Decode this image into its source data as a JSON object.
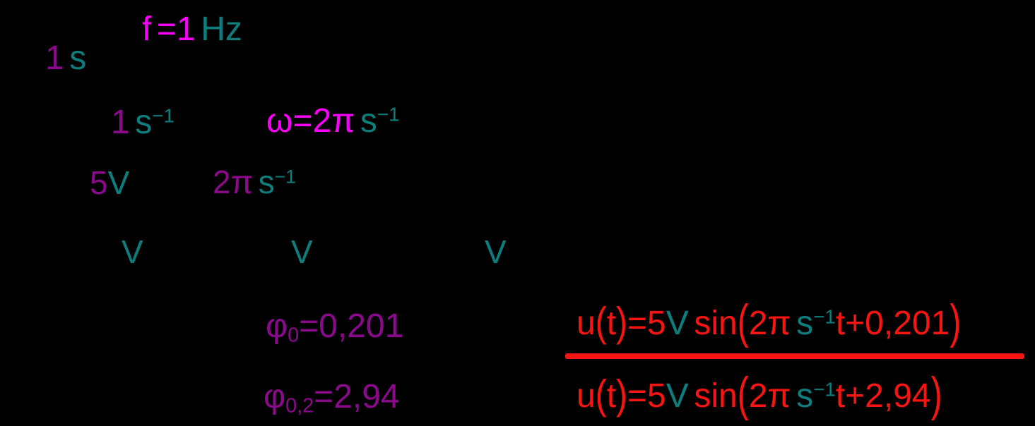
{
  "colors": {
    "teal": "#0d7d7e",
    "magenta": "#fa00fa",
    "purple": "#8b0a8b",
    "red": "#f81410",
    "background": "#000000"
  },
  "annotations": {
    "period": {
      "meaning": "period value",
      "segments": [
        {
          "t": "1",
          "c": "purple"
        },
        {
          "t": " s",
          "c": "teal"
        }
      ]
    },
    "frequency": {
      "meaning": "frequency equation",
      "segments": [
        {
          "t": "f",
          "c": "magenta"
        },
        {
          "t": " =",
          "c": "magenta"
        },
        {
          "t": "1",
          "c": "magenta"
        },
        {
          "t": " Hz",
          "c": "teal"
        }
      ]
    },
    "inverse_second": {
      "meaning": "1 per second value",
      "segments": [
        {
          "t": "1",
          "c": "purple"
        },
        {
          "t": " s",
          "c": "teal"
        },
        {
          "t": "−1",
          "c": "teal",
          "k": "sup"
        }
      ]
    },
    "omega": {
      "meaning": "angular frequency equation",
      "segments": [
        {
          "t": "ω",
          "c": "magenta"
        },
        {
          "t": "=",
          "c": "magenta"
        },
        {
          "t": "2π",
          "c": "magenta"
        },
        {
          "t": " s",
          "c": "teal"
        },
        {
          "t": "−1",
          "c": "teal",
          "k": "sup"
        }
      ]
    },
    "amplitude": {
      "meaning": "amplitude value",
      "segments": [
        {
          "t": "5",
          "c": "purple"
        },
        {
          "t": "V",
          "c": "teal"
        }
      ]
    },
    "angular_value": {
      "meaning": "angular frequency value",
      "segments": [
        {
          "t": "2π",
          "c": "purple"
        },
        {
          "t": " s",
          "c": "teal"
        },
        {
          "t": "−1",
          "c": "teal",
          "k": "sup"
        }
      ]
    },
    "unit_v_1": {
      "meaning": "volt unit mark",
      "segments": [
        {
          "t": "V",
          "c": "teal"
        }
      ]
    },
    "unit_v_2": {
      "meaning": "volt unit mark",
      "segments": [
        {
          "t": "V",
          "c": "teal"
        }
      ]
    },
    "unit_v_3": {
      "meaning": "volt unit mark",
      "segments": [
        {
          "t": "V",
          "c": "teal"
        }
      ]
    },
    "phase1": {
      "meaning": "initial phase solution 1",
      "segments": [
        {
          "t": "φ",
          "c": "purple"
        },
        {
          "t": "0",
          "c": "purple",
          "k": "sub"
        },
        {
          "t": "=0,201",
          "c": "purple"
        }
      ]
    },
    "phase2": {
      "meaning": "initial phase solution 2",
      "segments": [
        {
          "t": "φ",
          "c": "purple"
        },
        {
          "t": "0,2",
          "c": "purple",
          "k": "sub"
        },
        {
          "t": "=2,94",
          "c": "purple"
        }
      ]
    },
    "result1": {
      "meaning": "voltage equation solution 1 (underlined)",
      "segments": [
        {
          "t": "u",
          "c": "red"
        },
        {
          "t": "(",
          "c": "red",
          "k": "paren"
        },
        {
          "t": "t",
          "c": "red"
        },
        {
          "t": ")",
          "c": "red",
          "k": "paren"
        },
        {
          "t": "=",
          "c": "red"
        },
        {
          "t": "5",
          "c": "red"
        },
        {
          "t": "V",
          "c": "teal"
        },
        {
          "t": " sin",
          "c": "red"
        },
        {
          "t": "(",
          "c": "red",
          "k": "bigparen"
        },
        {
          "t": "2π",
          "c": "red"
        },
        {
          "t": " s",
          "c": "teal"
        },
        {
          "t": "−1",
          "c": "teal",
          "k": "sup"
        },
        {
          "t": "t+0,201",
          "c": "red"
        },
        {
          "t": ")",
          "c": "red",
          "k": "bigparen"
        }
      ]
    },
    "result2": {
      "meaning": "voltage equation solution 2",
      "segments": [
        {
          "t": "u",
          "c": "red"
        },
        {
          "t": "(",
          "c": "red",
          "k": "paren"
        },
        {
          "t": "t",
          "c": "red"
        },
        {
          "t": ")",
          "c": "red",
          "k": "paren"
        },
        {
          "t": "=",
          "c": "red"
        },
        {
          "t": "5",
          "c": "red"
        },
        {
          "t": "V",
          "c": "teal"
        },
        {
          "t": " sin",
          "c": "red"
        },
        {
          "t": "(",
          "c": "red",
          "k": "bigparen"
        },
        {
          "t": "2π",
          "c": "red"
        },
        {
          "t": " s",
          "c": "teal"
        },
        {
          "t": "−1",
          "c": "teal",
          "k": "sup"
        },
        {
          "t": "t+2,94",
          "c": "red"
        },
        {
          "t": ")",
          "c": "red",
          "k": "bigparen"
        }
      ]
    }
  }
}
